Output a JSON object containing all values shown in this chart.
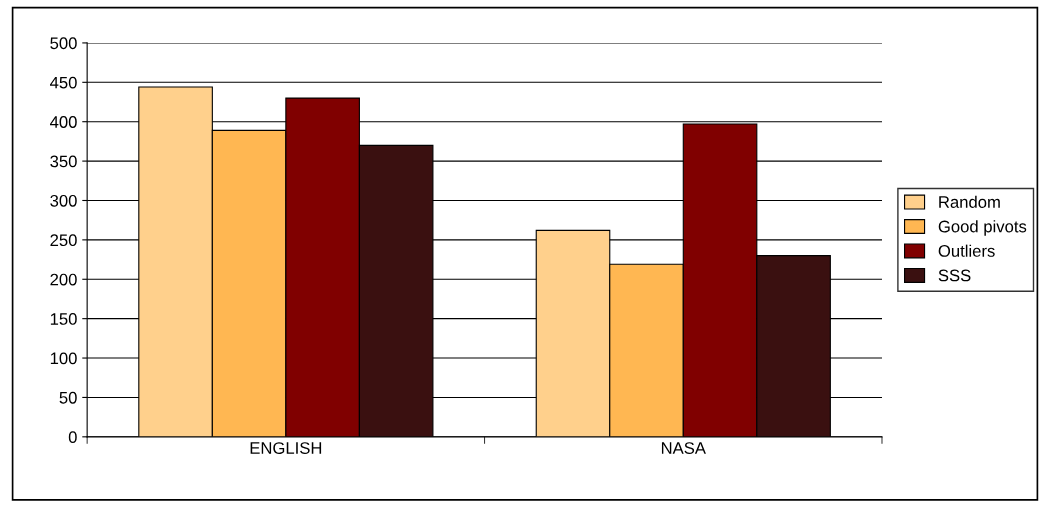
{
  "chart_data": {
    "type": "bar",
    "categories": [
      "ENGLISH",
      "NASA"
    ],
    "series": [
      {
        "name": "Random",
        "color": "#ffd08c",
        "values": [
          444,
          262
        ]
      },
      {
        "name": "Good pivots",
        "color": "#ffb752",
        "values": [
          389,
          219
        ]
      },
      {
        "name": "Outliers",
        "color": "#800000",
        "values": [
          430,
          397
        ]
      },
      {
        "name": "SSS",
        "color": "#3a1010",
        "values": [
          370,
          230
        ]
      }
    ],
    "ylim": [
      0,
      500
    ],
    "yticks": [
      0,
      50,
      100,
      150,
      200,
      250,
      300,
      350,
      400,
      450,
      500
    ],
    "grid": "y",
    "legend": "right"
  }
}
